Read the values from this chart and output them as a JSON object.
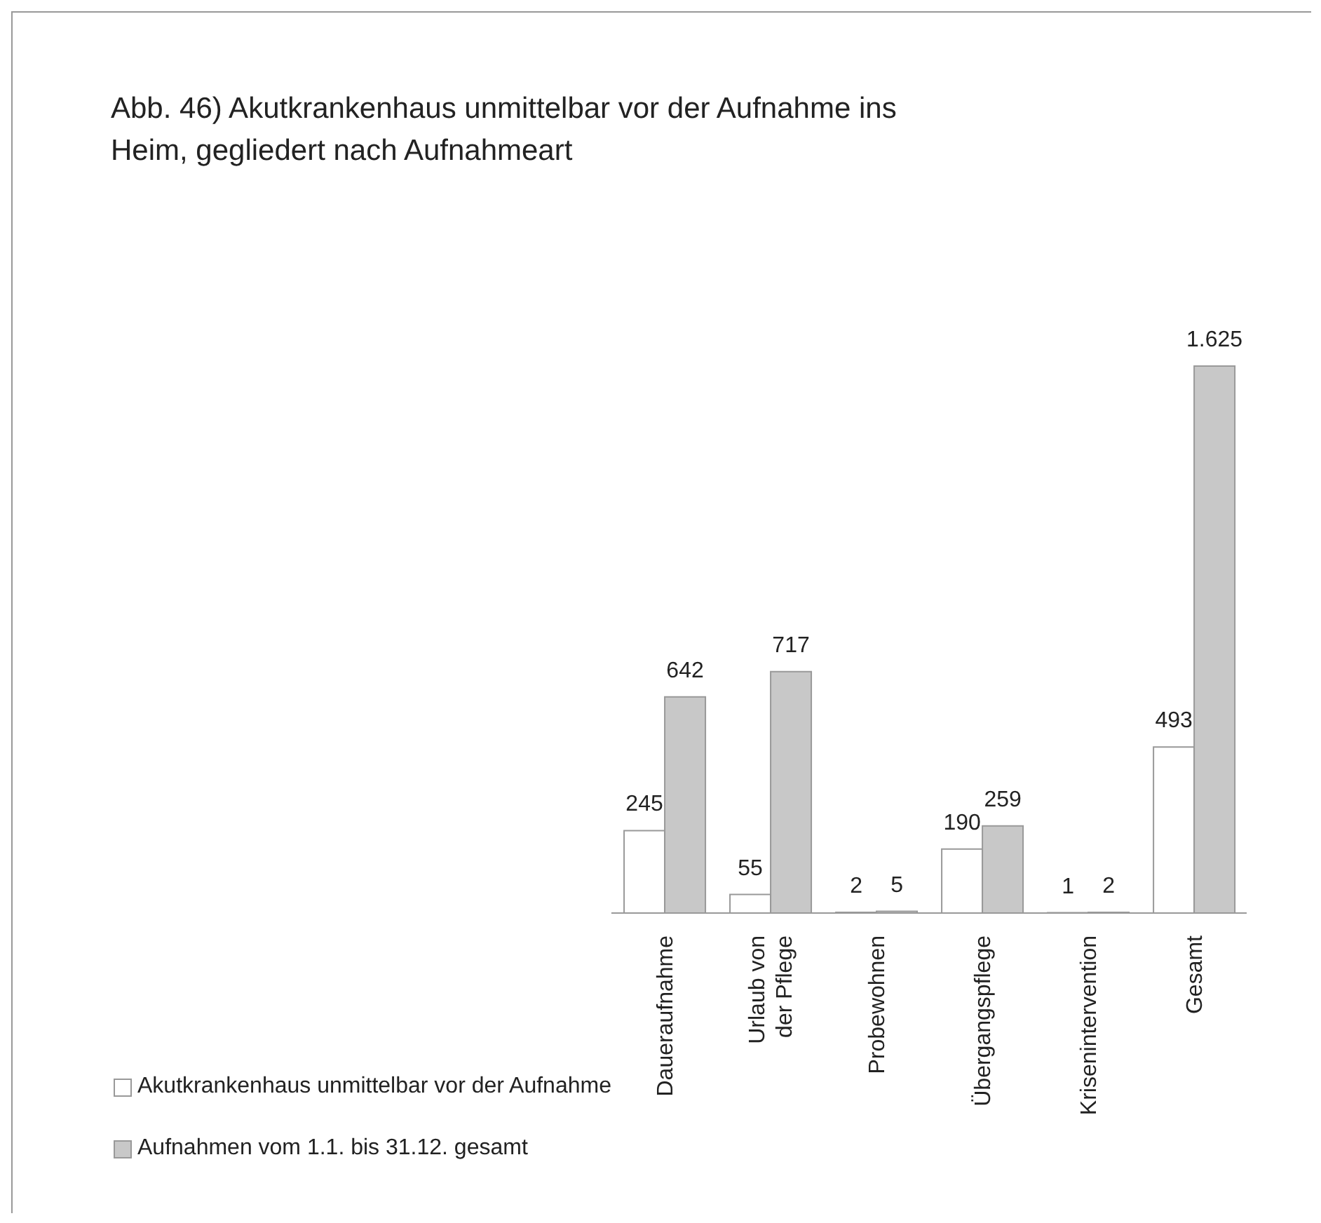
{
  "chart_data": {
    "type": "bar",
    "title": "Abb. 46) Akutkrankenhaus unmittelbar vor der Aufnahme ins Heim, gegliedert nach Aufnahmeart",
    "categories": [
      "Daueraufnahme",
      "Urlaub von der Pflege",
      "Probewohnen",
      "Übergangspflege",
      "Krisenintervention",
      "Gesamt"
    ],
    "series": [
      {
        "name": "Akutkrankenhaus unmittelbar vor der Aufnahme",
        "color": "#ffffff",
        "values": [
          245,
          55,
          2,
          190,
          1,
          493
        ],
        "value_labels": [
          "245",
          "55",
          "2",
          "190",
          "1",
          "493"
        ]
      },
      {
        "name": "Aufnahmen vom 1.1. bis 31.12. gesamt",
        "color": "#c8c8c8",
        "values": [
          642,
          717,
          5,
          259,
          2,
          1625
        ],
        "value_labels": [
          "642",
          "717",
          "5",
          "259",
          "2",
          "1.625"
        ]
      }
    ],
    "legend": "bottom left",
    "grid": false
  }
}
